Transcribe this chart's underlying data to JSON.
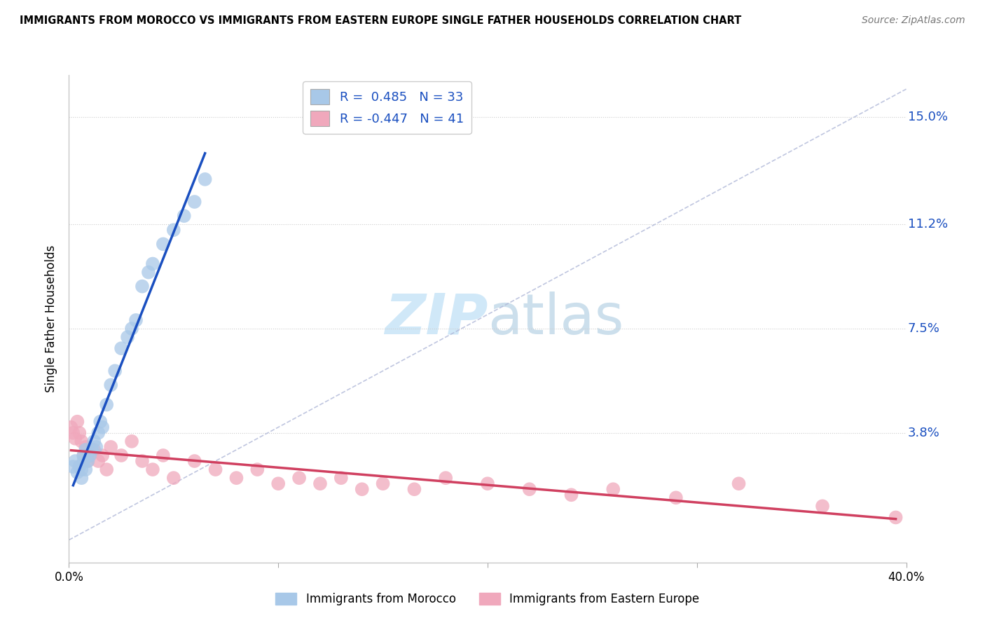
{
  "title": "IMMIGRANTS FROM MOROCCO VS IMMIGRANTS FROM EASTERN EUROPE SINGLE FATHER HOUSEHOLDS CORRELATION CHART",
  "source": "Source: ZipAtlas.com",
  "ylabel": "Single Father Households",
  "ytick_vals": [
    0.0,
    0.038,
    0.075,
    0.112,
    0.15
  ],
  "ytick_labels": [
    "",
    "3.8%",
    "7.5%",
    "11.2%",
    "15.0%"
  ],
  "xlim": [
    0.0,
    0.4
  ],
  "ylim": [
    -0.008,
    0.165
  ],
  "legend1_R": "0.485",
  "legend1_N": "33",
  "legend2_R": "-0.447",
  "legend2_N": "41",
  "blue_dot_color": "#A8C8E8",
  "pink_dot_color": "#F0A8BC",
  "blue_line_color": "#1A4FC0",
  "pink_line_color": "#D04060",
  "dash_line_color": "#B0B8D8",
  "watermark_color": "#D0E8F8",
  "morocco_x": [
    0.002,
    0.003,
    0.004,
    0.005,
    0.006,
    0.006,
    0.007,
    0.007,
    0.008,
    0.008,
    0.009,
    0.01,
    0.011,
    0.012,
    0.013,
    0.014,
    0.015,
    0.016,
    0.018,
    0.02,
    0.022,
    0.025,
    0.028,
    0.03,
    0.032,
    0.035,
    0.038,
    0.04,
    0.045,
    0.05,
    0.055,
    0.06,
    0.065
  ],
  "morocco_y": [
    0.026,
    0.028,
    0.024,
    0.026,
    0.022,
    0.025,
    0.03,
    0.028,
    0.025,
    0.032,
    0.028,
    0.03,
    0.032,
    0.035,
    0.033,
    0.038,
    0.042,
    0.04,
    0.048,
    0.055,
    0.06,
    0.068,
    0.072,
    0.075,
    0.078,
    0.09,
    0.095,
    0.098,
    0.105,
    0.11,
    0.115,
    0.12,
    0.128
  ],
  "eastern_x": [
    0.001,
    0.002,
    0.003,
    0.004,
    0.005,
    0.006,
    0.007,
    0.008,
    0.009,
    0.01,
    0.012,
    0.014,
    0.016,
    0.018,
    0.02,
    0.025,
    0.03,
    0.035,
    0.04,
    0.045,
    0.05,
    0.06,
    0.07,
    0.08,
    0.09,
    0.1,
    0.11,
    0.12,
    0.13,
    0.14,
    0.15,
    0.165,
    0.18,
    0.2,
    0.22,
    0.24,
    0.26,
    0.29,
    0.32,
    0.36,
    0.395
  ],
  "eastern_y": [
    0.04,
    0.038,
    0.036,
    0.042,
    0.038,
    0.035,
    0.03,
    0.033,
    0.028,
    0.03,
    0.032,
    0.028,
    0.03,
    0.025,
    0.033,
    0.03,
    0.035,
    0.028,
    0.025,
    0.03,
    0.022,
    0.028,
    0.025,
    0.022,
    0.025,
    0.02,
    0.022,
    0.02,
    0.022,
    0.018,
    0.02,
    0.018,
    0.022,
    0.02,
    0.018,
    0.016,
    0.018,
    0.015,
    0.02,
    0.012,
    0.008
  ]
}
